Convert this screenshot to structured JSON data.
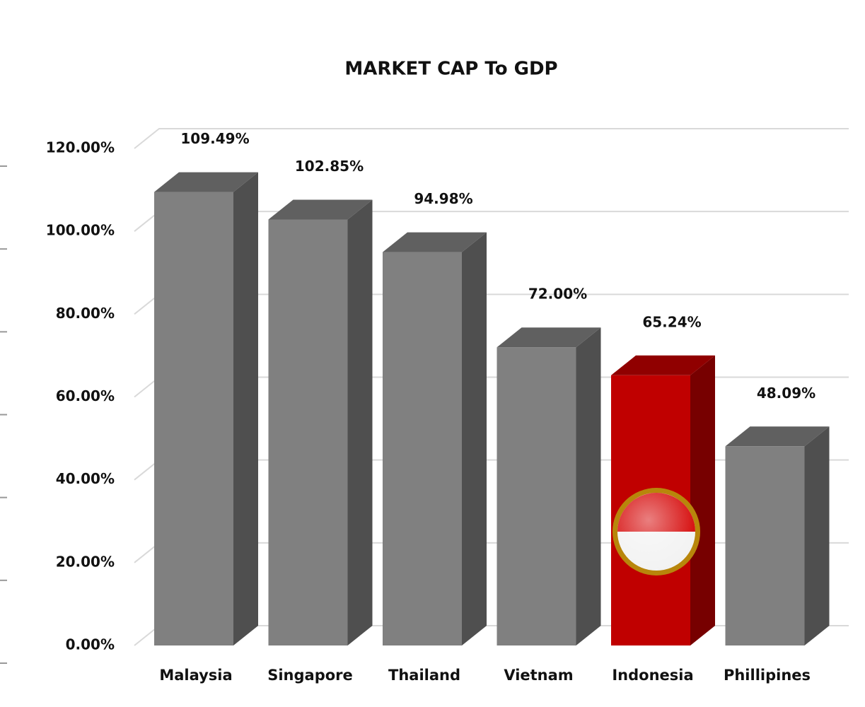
{
  "chart_data": {
    "type": "bar3d",
    "title": "MARKET CAP To GDP",
    "categories": [
      "Malaysia",
      "Singapore",
      "Thailand",
      "Vietnam",
      "Indonesia",
      "Phillipines"
    ],
    "values": [
      109.49,
      102.85,
      94.98,
      72.0,
      65.24,
      48.09
    ],
    "value_labels": [
      "109.49%",
      "102.85%",
      "94.98%",
      "72.00%",
      "65.24%",
      "48.09%"
    ],
    "colors": [
      "#808080",
      "#808080",
      "#808080",
      "#808080",
      "#c00000",
      "#808080"
    ],
    "ylim": [
      0,
      120
    ],
    "yticks": [
      {
        "value": 0,
        "label": "0.00%"
      },
      {
        "value": 20,
        "label": "20.00%"
      },
      {
        "value": 40,
        "label": "40.00%"
      },
      {
        "value": 60,
        "label": "60.00%"
      },
      {
        "value": 80,
        "label": "80.00%"
      },
      {
        "value": 100,
        "label": "100.00%"
      },
      {
        "value": 120,
        "label": "120.00%"
      }
    ],
    "grid": true
  }
}
